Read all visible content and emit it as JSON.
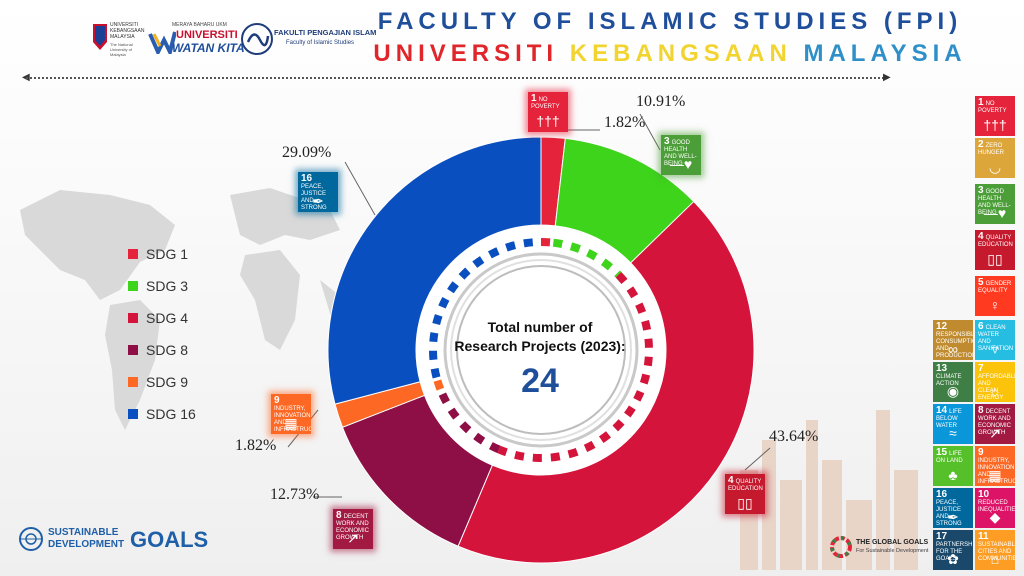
{
  "header": {
    "title_line1": "FACULTY OF ISLAMIC STUDIES (FPI)",
    "title_line2_words": [
      {
        "text": "UNIVERSITI",
        "color": "#e0262b"
      },
      {
        "text": "KEBANGSAAN",
        "color": "#f2d431"
      },
      {
        "text": "MALAYSIA",
        "color": "#2f8fc9"
      }
    ],
    "title_line1_color": "#1f4e9b"
  },
  "logos": {
    "ukm_text": "UNIVERSITI KEBANGSAAN MALAYSIA",
    "ukm_subtext": "The National University of Malaysia",
    "wk_top": "MERAYA BAHARU UKM",
    "wk_main_1": "UNIVERSITI",
    "wk_main_2": "WATAN KITA",
    "fpi_main": "FAKULTI PENGAJIAN ISLAM",
    "fpi_sub": "Faculty of Islamic Studies",
    "sdg_logo_line1": "SUSTAINABLE",
    "sdg_logo_line2": "DEVELOPMENT",
    "sdg_logo_goals": "GOALS",
    "gg_logo_line1": "THE GLOBAL GOALS",
    "gg_logo_line2": "For Sustainable Development"
  },
  "center": {
    "label_line1": "Total number of",
    "label_line2": "Research Projects (2023):",
    "total": "24"
  },
  "chart_data": {
    "type": "pie",
    "variant": "donut",
    "categories": [
      "SDG 1",
      "SDG 3",
      "SDG 4",
      "SDG 8",
      "SDG 9",
      "SDG 16"
    ],
    "values": [
      1.82,
      10.91,
      43.64,
      12.73,
      1.82,
      29.09
    ],
    "labels": [
      "1.82%",
      "10.91%",
      "43.64%",
      "12.73%",
      "1.82%",
      "29.09%"
    ],
    "colors": [
      "#e5243b",
      "#3ed41c",
      "#d4143a",
      "#8e0f45",
      "#fd6925",
      "#0a4fbf"
    ],
    "legend_position": "left"
  },
  "chart_tiles": [
    {
      "num": "1",
      "text": "NO POVERTY",
      "color": "#e5243b",
      "glyph": "†††"
    },
    {
      "num": "3",
      "text": "GOOD HEALTH AND WELL-BEING",
      "color": "#4c9f38",
      "glyph": "—♥"
    },
    {
      "num": "4",
      "text": "QUALITY EDUCATION",
      "color": "#c5192d",
      "glyph": "▯▯"
    },
    {
      "num": "8",
      "text": "DECENT WORK AND ECONOMIC GROWTH",
      "color": "#a21942",
      "glyph": "↗"
    },
    {
      "num": "9",
      "text": "INDUSTRY, INNOVATION AND INFRASTRUCTURE",
      "color": "#fd6925",
      "glyph": "▦"
    },
    {
      "num": "16",
      "text": "PEACE, JUSTICE AND STRONG INSTITUTIONS",
      "color": "#00689d",
      "glyph": "✒"
    }
  ],
  "sidebar_tiles": [
    {
      "num": "1",
      "text": "NO POVERTY",
      "color": "#e5243b",
      "glyph": "†††"
    },
    {
      "num": "2",
      "text": "ZERO HUNGER",
      "color": "#dda63a",
      "glyph": "◡"
    },
    {
      "num": "3",
      "text": "GOOD HEALTH AND WELL-BEING",
      "color": "#4c9f38",
      "glyph": "—♥"
    },
    {
      "num": "4",
      "text": "QUALITY EDUCATION",
      "color": "#c5192d",
      "glyph": "▯▯"
    },
    {
      "num": "5",
      "text": "GENDER EQUALITY",
      "color": "#ff3a21",
      "glyph": "♀"
    },
    {
      "num": "12",
      "text": "RESPONSIBLE CONSUMPTION AND PRODUCTION",
      "color": "#bf8b2e",
      "glyph": "∞"
    },
    {
      "num": "6",
      "text": "CLEAN WATER AND SANITATION",
      "color": "#26bde2",
      "glyph": "▿"
    },
    {
      "num": "13",
      "text": "CLIMATE ACTION",
      "color": "#3f7e44",
      "glyph": "◉"
    },
    {
      "num": "7",
      "text": "AFFORDABLE AND CLEAN ENERGY",
      "color": "#fcc30b",
      "glyph": "☼"
    },
    {
      "num": "14",
      "text": "LIFE BELOW WATER",
      "color": "#0a97d9",
      "glyph": "≈"
    },
    {
      "num": "8",
      "text": "DECENT WORK AND ECONOMIC GROWTH",
      "color": "#a21942",
      "glyph": "↗"
    },
    {
      "num": "15",
      "text": "LIFE ON LAND",
      "color": "#56c02b",
      "glyph": "♣"
    },
    {
      "num": "9",
      "text": "INDUSTRY, INNOVATION AND INFRASTRUCTURE",
      "color": "#fd6925",
      "glyph": "▦"
    },
    {
      "num": "16",
      "text": "PEACE, JUSTICE AND STRONG INSTITUTIONS",
      "color": "#00689d",
      "glyph": "✒"
    },
    {
      "num": "10",
      "text": "REDUCED INEQUALITIES",
      "color": "#dd1367",
      "glyph": "◆"
    },
    {
      "num": "17",
      "text": "PARTNERSHIPS FOR THE GOALS",
      "color": "#19486a",
      "glyph": "✿"
    },
    {
      "num": "11",
      "text": "SUSTAINABLE CITIES AND COMMUNITIES",
      "color": "#fd9d24",
      "glyph": "⌂"
    }
  ]
}
